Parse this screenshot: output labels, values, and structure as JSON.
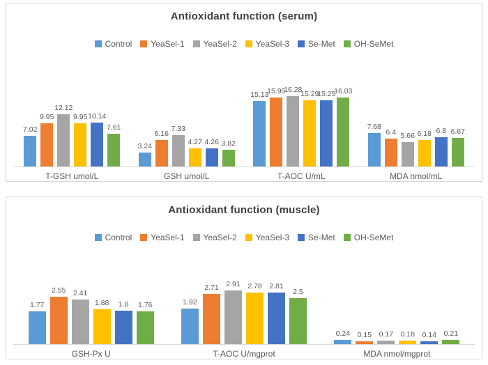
{
  "chart_data": [
    {
      "type": "bar",
      "title": "Antioxidant function (serum)",
      "legend_position": "top",
      "grid": false,
      "data_labels": true,
      "axis_hidden": true,
      "ylim": [
        0,
        18
      ],
      "categories": [
        "T-GSH umol/L",
        "GSH umol/L",
        "T-AOC U/mL",
        "MDA nmol/mL"
      ],
      "series": [
        {
          "name": "Control",
          "color": "#5B9BD5",
          "values": [
            7.02,
            3.24,
            15.13,
            7.68
          ]
        },
        {
          "name": "YeaSel-1",
          "color": "#ED7D31",
          "values": [
            9.95,
            6.16,
            15.95,
            6.4
          ]
        },
        {
          "name": "YeaSel-2",
          "color": "#A5A5A5",
          "values": [
            12.12,
            7.33,
            16.28,
            5.66
          ]
        },
        {
          "name": "YeaSel-3",
          "color": "#FFC000",
          "values": [
            9.95,
            4.27,
            15.29,
            6.18
          ]
        },
        {
          "name": "Se-Met",
          "color": "#4472C4",
          "values": [
            10.14,
            4.26,
            15.25,
            6.8
          ]
        },
        {
          "name": "OH-SeMet",
          "color": "#70AD47",
          "values": [
            7.61,
            3.82,
            16.03,
            6.67
          ]
        }
      ]
    },
    {
      "type": "bar",
      "title": "Antioxidant function (muscle)",
      "legend_position": "top",
      "grid": false,
      "data_labels": true,
      "axis_hidden": true,
      "ylim": [
        0,
        3.5
      ],
      "categories": [
        "GSH-Px U",
        "T-AOC U/mgprot",
        "MDA nmol/mgprot"
      ],
      "series": [
        {
          "name": "Control",
          "color": "#5B9BD5",
          "values": [
            1.77,
            1.92,
            0.24
          ]
        },
        {
          "name": "YeaSel-1",
          "color": "#ED7D31",
          "values": [
            2.55,
            2.71,
            0.15
          ]
        },
        {
          "name": "YeaSel-2",
          "color": "#A5A5A5",
          "values": [
            2.41,
            2.91,
            0.17
          ]
        },
        {
          "name": "YeaSel-3",
          "color": "#FFC000",
          "values": [
            1.88,
            2.78,
            0.18
          ]
        },
        {
          "name": "Se-Met",
          "color": "#4472C4",
          "values": [
            1.8,
            2.81,
            0.14
          ]
        },
        {
          "name": "OH-SeMet",
          "color": "#70AD47",
          "values": [
            1.76,
            2.5,
            0.21
          ]
        }
      ]
    }
  ]
}
